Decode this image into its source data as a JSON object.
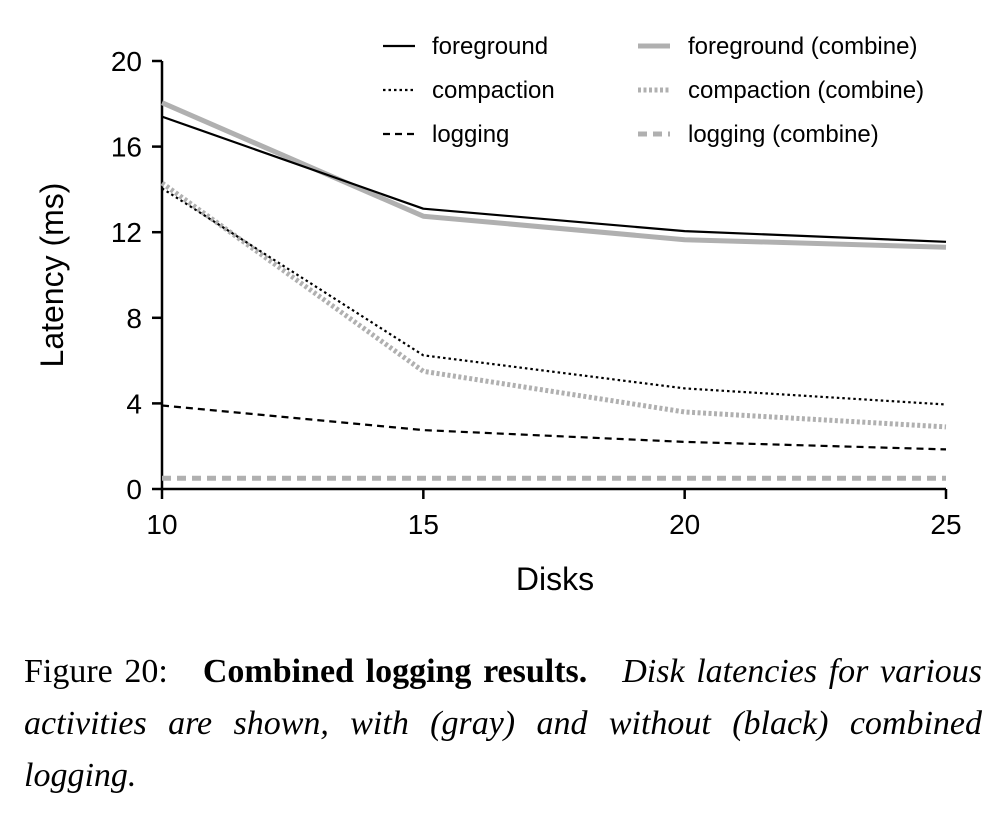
{
  "chart_data": {
    "type": "line",
    "xlabel": "Disks",
    "ylabel": "Latency (ms)",
    "x": [
      10,
      15,
      20,
      25
    ],
    "xticks": [
      "10",
      "15",
      "20",
      "25"
    ],
    "yticks": [
      "0",
      "4",
      "8",
      "12",
      "16",
      "20"
    ],
    "xlim": [
      10,
      25
    ],
    "ylim": [
      0,
      20
    ],
    "grid": false,
    "legend_position": "top-right",
    "series": [
      {
        "name": "foreground",
        "values": [
          17.4,
          13.1,
          12.05,
          11.55
        ],
        "color": "#000000",
        "style": "solid"
      },
      {
        "name": "compaction",
        "values": [
          14.05,
          6.25,
          4.7,
          3.95
        ],
        "color": "#000000",
        "style": "dotted"
      },
      {
        "name": "logging",
        "values": [
          3.9,
          2.75,
          2.2,
          1.85
        ],
        "color": "#000000",
        "style": "dashed"
      },
      {
        "name": "foreground (combine)",
        "values": [
          18.05,
          12.75,
          11.65,
          11.3
        ],
        "color": "#b0b0b0",
        "style": "solid"
      },
      {
        "name": "compaction (combine)",
        "values": [
          14.3,
          5.5,
          3.6,
          2.9
        ],
        "color": "#b0b0b0",
        "style": "dotted"
      },
      {
        "name": "logging (combine)",
        "values": [
          0.5,
          0.5,
          0.5,
          0.5
        ],
        "color": "#b0b0b0",
        "style": "dashed"
      }
    ]
  },
  "caption": {
    "lead": "Figure 20:",
    "bold": "Combined logging results.",
    "italic": "Disk latencies for various activities are shown, with (gray) and without (black) combined logging."
  }
}
